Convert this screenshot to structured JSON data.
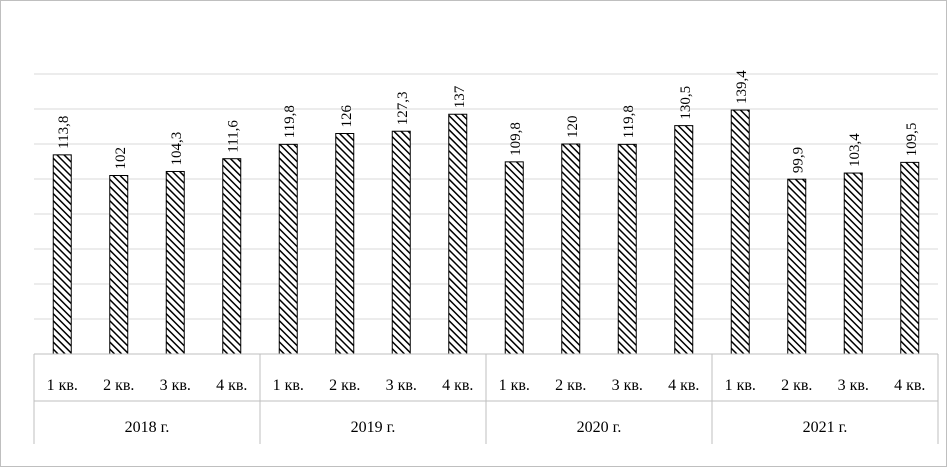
{
  "chart_data": {
    "type": "bar",
    "categories": [
      "1 кв.",
      "2 кв.",
      "3 кв.",
      "4 кв.",
      "1 кв.",
      "2 кв.",
      "3 кв.",
      "4 кв.",
      "1 кв.",
      "2 кв.",
      "3 кв.",
      "4 кв.",
      "1 кв.",
      "2 кв.",
      "3 кв.",
      "4 кв."
    ],
    "groups": [
      "2018 г.",
      "2019 г.",
      "2020 г.",
      "2021 г."
    ],
    "values": [
      113.8,
      102,
      104.3,
      111.6,
      119.8,
      126,
      127.3,
      137,
      109.8,
      120,
      119.8,
      130.5,
      139.4,
      99.9,
      103.4,
      109.5
    ],
    "value_labels": [
      "113,8",
      "102",
      "104,3",
      "111,6",
      "119,8",
      "126",
      "127,3",
      "137",
      "109,8",
      "120",
      "119,8",
      "130,5",
      "139,4",
      "99,9",
      "103,4",
      "109,5"
    ],
    "ylim": [
      0,
      160
    ],
    "grid": true,
    "bar_fill": "diagonal-hatch",
    "colors": {
      "hatch": "#000000",
      "grid": "#d9d9d9",
      "frame": "#bfbfbf"
    }
  }
}
